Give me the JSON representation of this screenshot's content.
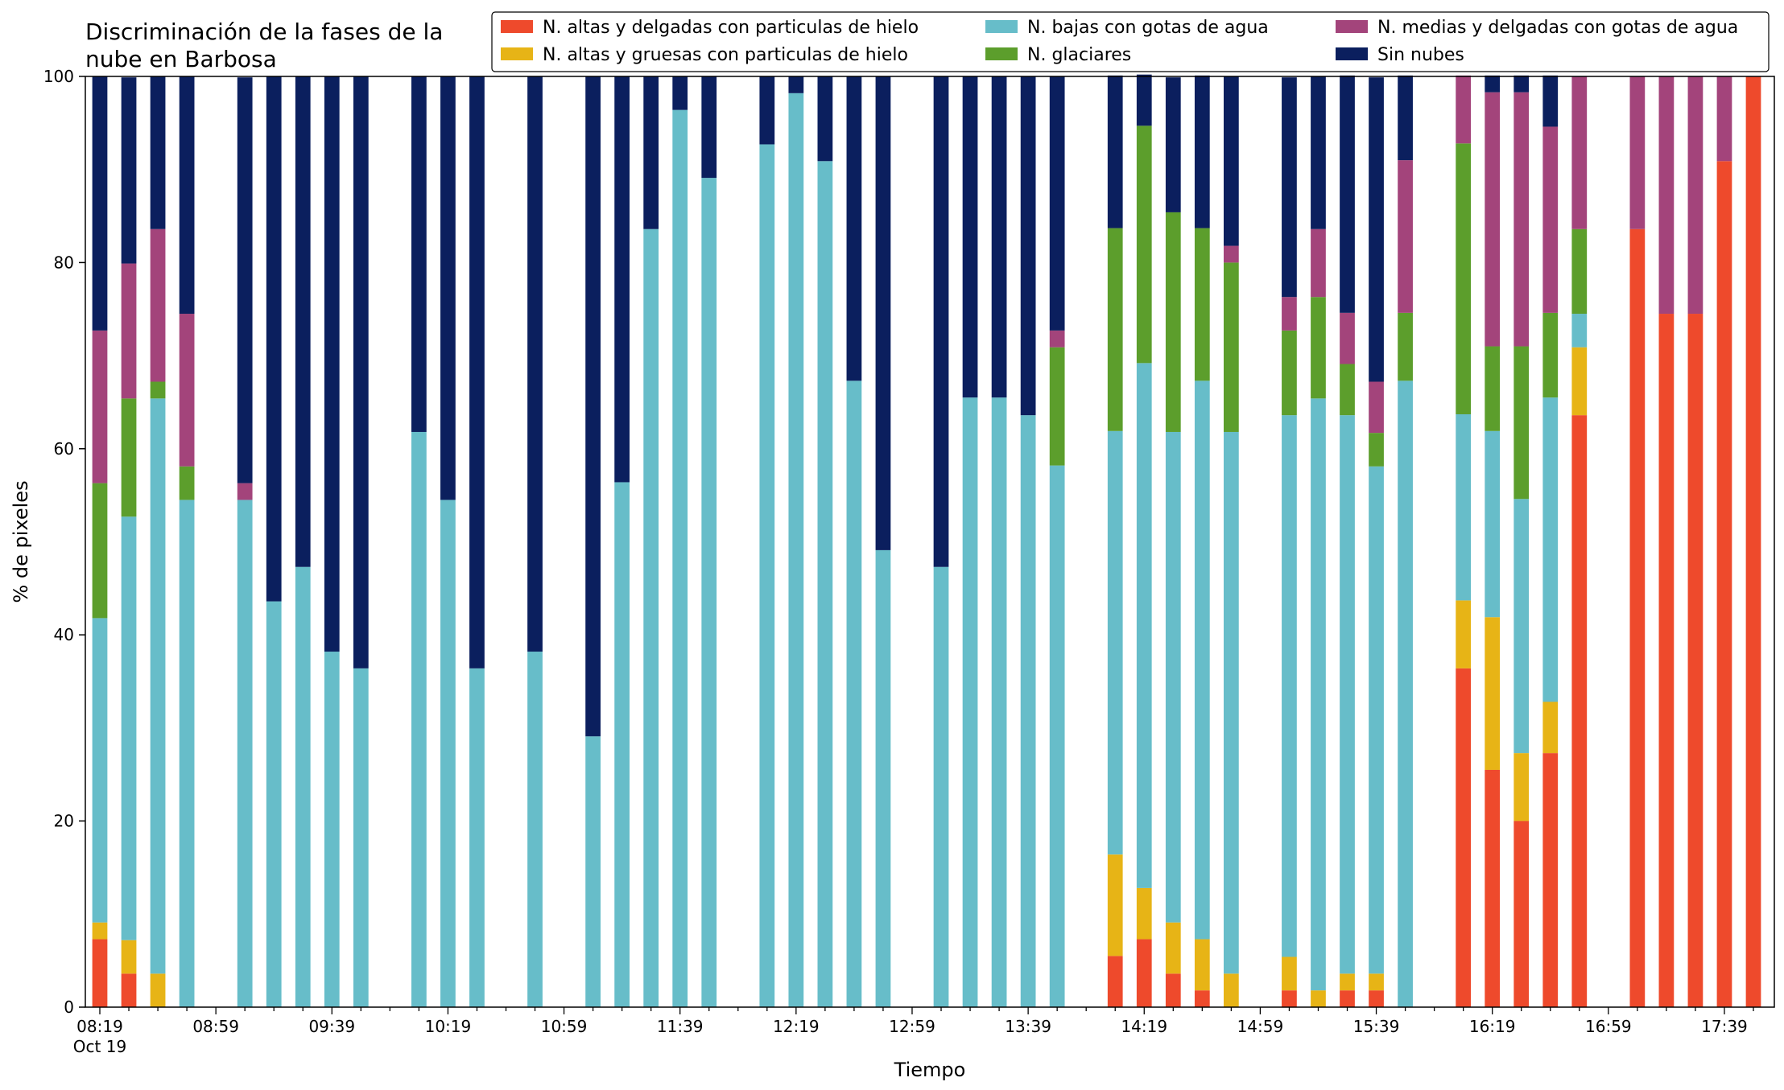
{
  "chart_data": {
    "type": "bar",
    "stacked": true,
    "title_lines": [
      "Discriminación de la fases de la",
      "nube en Barbosa"
    ],
    "xlabel": "Tiempo",
    "ylabel": "% de pixeles",
    "ylim": [
      0,
      100
    ],
    "yticks": [
      0,
      20,
      40,
      60,
      80,
      100
    ],
    "x_time_range": [
      "08:19",
      "17:59"
    ],
    "x_interval_minutes": 10,
    "xtick_labels": [
      "08:19",
      "08:59",
      "09:39",
      "10:19",
      "10:59",
      "11:39",
      "12:19",
      "12:59",
      "13:39",
      "14:19",
      "14:59",
      "15:39",
      "16:19",
      "16:59",
      "17:39"
    ],
    "xtick_sublabel": "Oct 19",
    "grid": false,
    "legend_position": "top-right",
    "series": [
      {
        "name": "N. altas y delgadas con particulas de hielo",
        "color": "#ee4a2c",
        "values": [
          7.3,
          3.6,
          0,
          0,
          null,
          0,
          0,
          0,
          0,
          0,
          null,
          0,
          0,
          0,
          null,
          0,
          null,
          0,
          0,
          0,
          0,
          0,
          null,
          0,
          0,
          0,
          0,
          0,
          null,
          0,
          0,
          0,
          0,
          0,
          null,
          5.5,
          7.3,
          3.6,
          1.8,
          0,
          null,
          1.8,
          0,
          1.8,
          1.8,
          0,
          null,
          36.4,
          25.5,
          20.0,
          27.3,
          63.6,
          null,
          83.6,
          74.5,
          74.5,
          90.9,
          100
        ]
      },
      {
        "name": "N. altas y gruesas con particulas de hielo",
        "color": "#e7b416",
        "values": [
          1.8,
          3.6,
          3.6,
          0,
          null,
          0,
          0,
          0,
          0,
          0,
          null,
          0,
          0,
          0,
          null,
          0,
          null,
          0,
          0,
          0,
          0,
          0,
          null,
          0,
          0,
          0,
          0,
          0,
          null,
          0,
          0,
          0,
          0,
          0,
          null,
          10.9,
          5.5,
          5.5,
          5.5,
          3.6,
          null,
          3.6,
          1.8,
          1.8,
          1.8,
          0,
          null,
          7.3,
          16.4,
          7.3,
          5.5,
          7.3,
          null,
          0,
          0,
          0,
          0,
          0
        ]
      },
      {
        "name": "N. bajas con gotas de agua",
        "color": "#67bdc9",
        "values": [
          32.7,
          45.5,
          61.8,
          54.5,
          null,
          54.5,
          43.6,
          47.3,
          38.2,
          36.4,
          null,
          61.8,
          54.5,
          36.4,
          null,
          38.2,
          null,
          29.1,
          56.4,
          83.6,
          96.4,
          89.1,
          null,
          92.7,
          98.2,
          90.9,
          67.3,
          49.1,
          null,
          47.3,
          65.5,
          65.5,
          63.6,
          58.2,
          null,
          45.5,
          56.4,
          52.7,
          60.0,
          58.2,
          null,
          58.2,
          63.6,
          60.0,
          54.5,
          67.3,
          null,
          20.0,
          20.0,
          27.3,
          32.7,
          3.6,
          null,
          0,
          0,
          0,
          0,
          0
        ]
      },
      {
        "name": "N. glaciares",
        "color": "#5c9e2c",
        "values": [
          14.5,
          12.7,
          1.8,
          3.6,
          null,
          0,
          0,
          0,
          0,
          0,
          null,
          0,
          0,
          0,
          null,
          0,
          null,
          0,
          0,
          0,
          0,
          0,
          null,
          0,
          0,
          0,
          0,
          0,
          null,
          0,
          0,
          0,
          0,
          12.7,
          null,
          21.8,
          25.5,
          23.6,
          16.4,
          18.2,
          null,
          9.1,
          10.9,
          5.5,
          3.6,
          7.3,
          null,
          29.1,
          9.1,
          16.4,
          9.1,
          9.1,
          null,
          0,
          0,
          0,
          0,
          0
        ]
      },
      {
        "name": "N. medias y delgadas con gotas de agua",
        "color": "#a3447b",
        "values": [
          16.4,
          14.5,
          16.4,
          16.4,
          null,
          1.8,
          0,
          0,
          0,
          0,
          null,
          0,
          0,
          0,
          null,
          0,
          null,
          0,
          0,
          0,
          0,
          0,
          null,
          0,
          0,
          0,
          0,
          0,
          null,
          0,
          0,
          0,
          0,
          1.8,
          null,
          0,
          0,
          0,
          0,
          1.8,
          null,
          3.6,
          7.3,
          5.5,
          5.5,
          16.4,
          null,
          7.3,
          27.3,
          27.3,
          20.0,
          16.4,
          null,
          16.4,
          25.5,
          25.5,
          9.1,
          0
        ]
      },
      {
        "name": "Sin nubes",
        "color": "#0b1f5e",
        "values": [
          27.3,
          20.0,
          16.4,
          25.5,
          null,
          43.6,
          56.4,
          52.7,
          61.8,
          63.6,
          null,
          38.2,
          45.5,
          63.6,
          null,
          61.8,
          null,
          70.9,
          43.6,
          16.4,
          3.6,
          10.9,
          null,
          7.3,
          1.8,
          9.1,
          32.7,
          50.9,
          null,
          52.7,
          34.5,
          34.5,
          36.4,
          27.3,
          null,
          16.4,
          5.5,
          14.5,
          16.4,
          18.2,
          null,
          23.6,
          16.4,
          25.5,
          32.7,
          9.1,
          null,
          0,
          1.8,
          1.8,
          5.5,
          0,
          null,
          0,
          0,
          0,
          0,
          0
        ]
      }
    ]
  }
}
